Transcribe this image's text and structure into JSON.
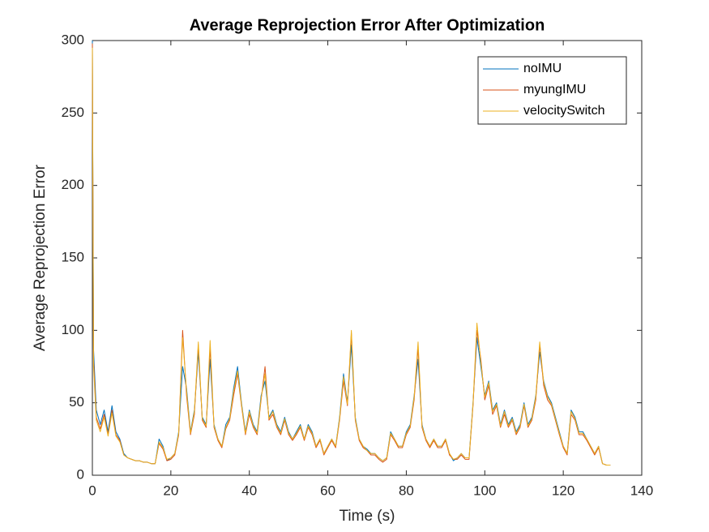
{
  "chart_data": {
    "type": "line",
    "title": "Average Reprojection Error After Optimization",
    "x_label": "Time (s)",
    "y_label": "Average Reprojection Error",
    "xlim": [
      0,
      140
    ],
    "xticks": [
      0,
      20,
      40,
      60,
      80,
      100,
      120,
      140
    ],
    "ylim": [
      0,
      300
    ],
    "yticks": [
      0,
      50,
      100,
      150,
      200,
      250,
      300
    ],
    "legend": "top-right",
    "grid": false,
    "x": [
      0,
      0.3,
      1,
      2,
      3,
      4,
      5,
      6,
      7,
      8,
      9,
      10,
      11,
      12,
      13,
      14,
      15,
      16,
      17,
      18,
      19,
      20,
      21,
      22,
      23,
      24,
      25,
      26,
      27,
      28,
      29,
      30,
      31,
      32,
      33,
      34,
      35,
      36,
      37,
      38,
      39,
      40,
      41,
      42,
      43,
      44,
      45,
      46,
      47,
      48,
      49,
      50,
      51,
      52,
      53,
      54,
      55,
      56,
      57,
      58,
      59,
      60,
      61,
      62,
      63,
      64,
      65,
      66,
      67,
      68,
      69,
      70,
      71,
      72,
      73,
      74,
      75,
      76,
      77,
      78,
      79,
      80,
      81,
      82,
      83,
      84,
      85,
      86,
      87,
      88,
      89,
      90,
      91,
      92,
      93,
      94,
      95,
      96,
      97,
      98,
      99,
      100,
      101,
      102,
      103,
      104,
      105,
      106,
      107,
      108,
      109,
      110,
      111,
      112,
      113,
      114,
      115,
      116,
      117,
      118,
      119,
      120,
      121,
      122,
      123,
      124,
      125,
      126,
      127,
      128,
      129,
      130,
      131,
      132
    ],
    "series": [
      {
        "name": "noIMU",
        "color": "#0072BD",
        "values": [
          300,
          87,
          45,
          35,
          45,
          30,
          48,
          30,
          25,
          15,
          12,
          11,
          10,
          10,
          9,
          9,
          8,
          8,
          25,
          20,
          10,
          12,
          15,
          30,
          75,
          60,
          30,
          45,
          85,
          40,
          35,
          80,
          35,
          25,
          20,
          35,
          40,
          60,
          75,
          50,
          30,
          45,
          35,
          30,
          55,
          65,
          40,
          45,
          35,
          30,
          40,
          30,
          25,
          30,
          35,
          25,
          35,
          30,
          20,
          25,
          15,
          20,
          25,
          20,
          40,
          70,
          50,
          90,
          40,
          25,
          20,
          18,
          15,
          15,
          12,
          10,
          12,
          30,
          25,
          20,
          20,
          30,
          35,
          55,
          80,
          35,
          25,
          20,
          25,
          20,
          20,
          25,
          15,
          10,
          12,
          15,
          12,
          12,
          50,
          95,
          75,
          55,
          65,
          45,
          50,
          35,
          45,
          35,
          40,
          30,
          35,
          50,
          35,
          40,
          55,
          85,
          65,
          55,
          50,
          40,
          30,
          20,
          15,
          45,
          40,
          30,
          30,
          25,
          20,
          15,
          20,
          8,
          7,
          7
        ]
      },
      {
        "name": "myungIMU",
        "color": "#D95319",
        "values": [
          298,
          80,
          40,
          32,
          42,
          28,
          45,
          28,
          24,
          14,
          12,
          11,
          10,
          10,
          9,
          9,
          8,
          8,
          22,
          18,
          10,
          11,
          14,
          28,
          100,
          55,
          28,
          42,
          90,
          38,
          33,
          88,
          33,
          24,
          19,
          32,
          38,
          55,
          70,
          48,
          28,
          42,
          33,
          28,
          52,
          75,
          38,
          42,
          33,
          28,
          38,
          28,
          24,
          28,
          33,
          24,
          33,
          28,
          19,
          24,
          14,
          19,
          24,
          19,
          38,
          65,
          48,
          98,
          38,
          24,
          19,
          17,
          14,
          14,
          11,
          9,
          11,
          28,
          24,
          19,
          19,
          28,
          33,
          52,
          88,
          33,
          24,
          19,
          24,
          19,
          19,
          24,
          14,
          11,
          11,
          14,
          11,
          11,
          48,
          100,
          80,
          52,
          62,
          42,
          48,
          33,
          42,
          33,
          38,
          28,
          33,
          48,
          33,
          38,
          52,
          90,
          62,
          52,
          48,
          38,
          28,
          19,
          14,
          42,
          38,
          28,
          28,
          24,
          19,
          14,
          19,
          8,
          7,
          7
        ]
      },
      {
        "name": "velocitySwitch",
        "color": "#EDB120",
        "values": [
          295,
          75,
          38,
          30,
          40,
          27,
          43,
          27,
          23,
          14,
          12,
          11,
          10,
          10,
          9,
          9,
          8,
          8,
          23,
          19,
          11,
          12,
          15,
          29,
          95,
          58,
          29,
          44,
          92,
          39,
          34,
          93,
          34,
          25,
          20,
          33,
          39,
          58,
          72,
          49,
          29,
          44,
          34,
          29,
          53,
          70,
          39,
          44,
          34,
          29,
          39,
          29,
          25,
          29,
          34,
          25,
          34,
          29,
          20,
          25,
          15,
          20,
          25,
          20,
          39,
          68,
          49,
          100,
          39,
          25,
          20,
          17,
          15,
          15,
          12,
          10,
          12,
          29,
          25,
          20,
          20,
          29,
          34,
          54,
          92,
          34,
          25,
          20,
          25,
          20,
          20,
          25,
          15,
          11,
          12,
          15,
          12,
          12,
          49,
          105,
          78,
          54,
          64,
          44,
          49,
          34,
          44,
          34,
          39,
          29,
          34,
          49,
          34,
          39,
          54,
          92,
          64,
          54,
          49,
          39,
          29,
          20,
          15,
          44,
          39,
          29,
          29,
          25,
          20,
          15,
          20,
          8,
          7,
          7
        ]
      }
    ]
  }
}
